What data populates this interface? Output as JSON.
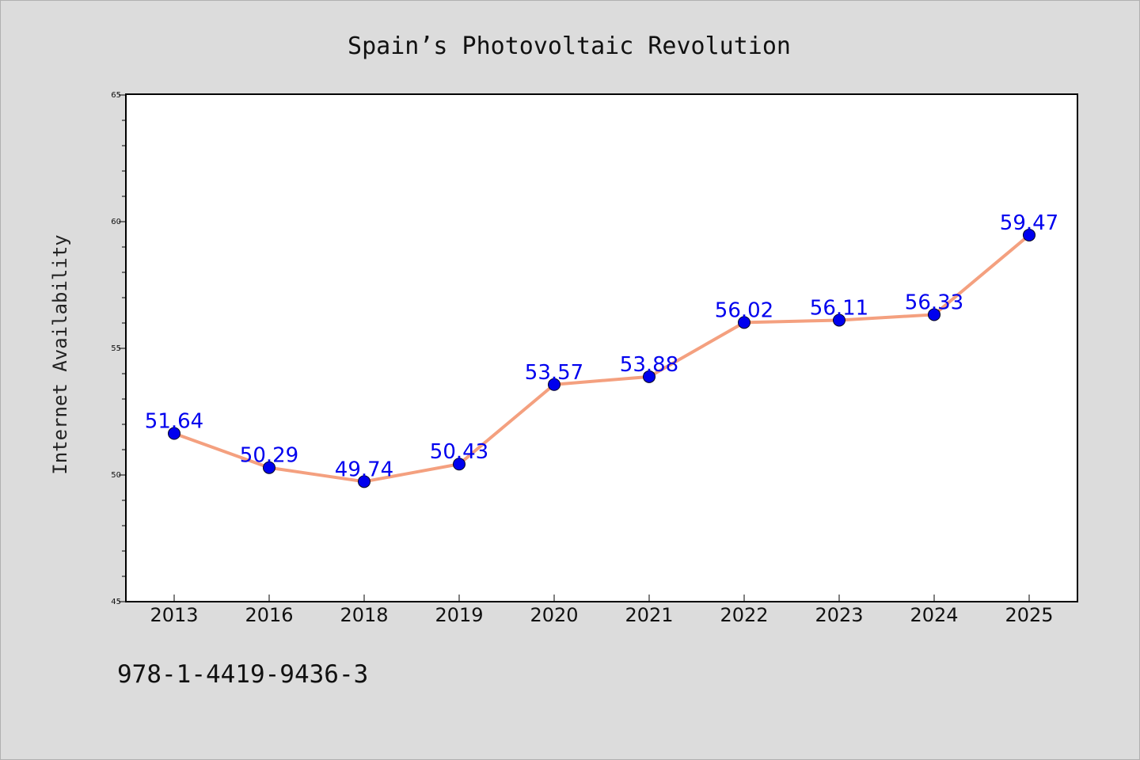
{
  "chart_data": {
    "type": "line",
    "title": "Spain’s Photovoltaic Revolution",
    "xlabel": "",
    "ylabel": "Internet Availability",
    "categories": [
      "2013",
      "2016",
      "2018",
      "2019",
      "2020",
      "2021",
      "2022",
      "2023",
      "2024",
      "2025"
    ],
    "series": [
      {
        "values": [
          51.64,
          50.29,
          49.74,
          50.43,
          53.57,
          53.88,
          56.02,
          56.11,
          56.33,
          59.47
        ],
        "data_labels": [
          "51.64",
          "50.29",
          "49.74",
          "50.43",
          "53.57",
          "53.88",
          "56.02",
          "56.11",
          "56.33",
          "59.47"
        ]
      }
    ],
    "ylim": [
      45,
      65
    ],
    "yticks": [
      "45",
      "50",
      "55",
      "60",
      "65"
    ],
    "grid": false,
    "legend": "none",
    "colors": {
      "line": "#f4a07f",
      "marker": "#0000ee",
      "label": "#0000ee",
      "plot_bg": "#ffffff",
      "page_bg": "#dcdcdc"
    }
  },
  "footer": {
    "code": "978-1-4419-9436-3"
  }
}
